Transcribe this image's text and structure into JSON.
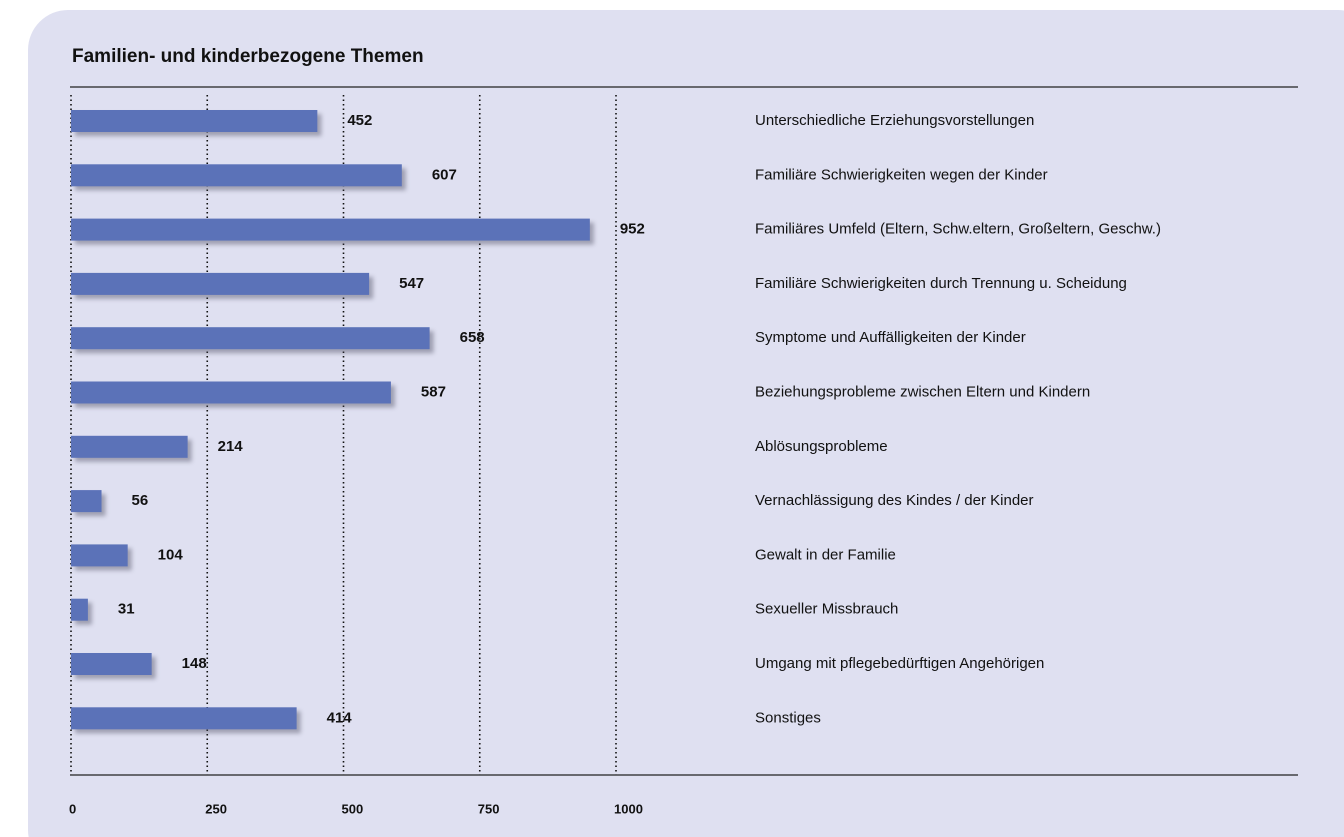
{
  "chart_data": {
    "type": "bar",
    "orientation": "horizontal",
    "title": "Familien- und kinderbezogene Themen",
    "categories": [
      "Unterschiedliche Erziehungsvorstellungen",
      "Familiäre Schwierigkeiten wegen der Kinder",
      "Familiäres Umfeld (Eltern, Schw.eltern, Großeltern, Geschw.)",
      "Familiäre Schwierigkeiten durch Trennung u. Scheidung",
      "Symptome und Auffälligkeiten der Kinder",
      "Beziehungsprobleme zwischen Eltern und Kindern",
      "Ablösungsprobleme",
      "Vernachlässigung des Kindes / der Kinder",
      "Gewalt in der Familie",
      "Sexueller Missbrauch",
      "Umgang mit pflegebedürftigen Angehörigen",
      "Sonstiges"
    ],
    "values": [
      452,
      607,
      952,
      547,
      658,
      587,
      214,
      56,
      104,
      31,
      148,
      414
    ],
    "color": "#5b72b8",
    "xlim": [
      0,
      1000
    ],
    "xticks": [
      0,
      250,
      500,
      750,
      1000
    ],
    "grid": true
  }
}
